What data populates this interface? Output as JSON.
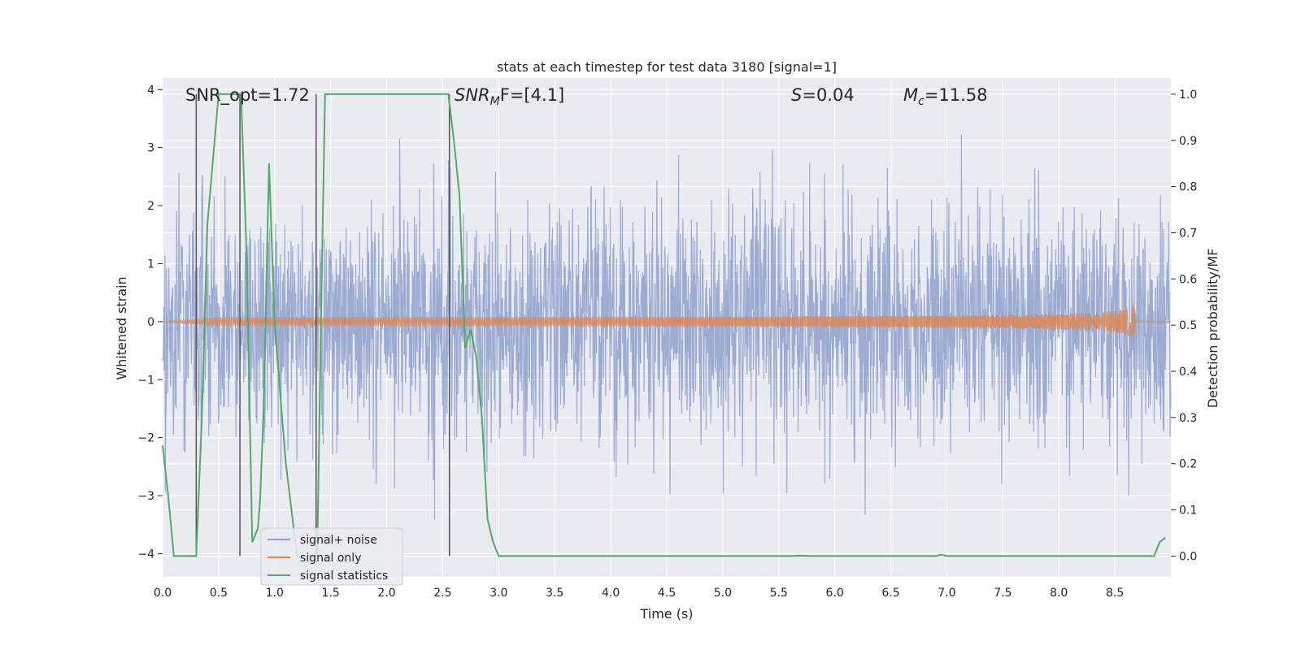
{
  "chart_data": {
    "type": "line",
    "title": "stats at each timestep for test data 3180 [signal=1]",
    "xlabel": "Time (s)",
    "ylabel": "Whitened strain",
    "ylabel_right": "Detection probability/MF",
    "xlim": [
      0,
      9.0
    ],
    "ylim": [
      -4.4,
      4.2
    ],
    "ylim_right": [
      -0.045,
      1.035
    ],
    "x_ticks": [
      "0.0",
      "0.5",
      "1.0",
      "1.5",
      "2.0",
      "2.5",
      "3.0",
      "3.5",
      "4.0",
      "4.5",
      "5.0",
      "5.5",
      "6.0",
      "6.5",
      "7.0",
      "7.5",
      "8.0",
      "8.5"
    ],
    "x_tick_values": [
      0,
      0.5,
      1,
      1.5,
      2,
      2.5,
      3,
      3.5,
      4,
      4.5,
      5,
      5.5,
      6,
      6.5,
      7,
      7.5,
      8,
      8.5
    ],
    "y_ticks": [
      "4",
      "3",
      "2",
      "1",
      "0",
      "−1",
      "−2",
      "−3",
      "−4"
    ],
    "y_tick_values": [
      4,
      3,
      2,
      1,
      0,
      -1,
      -2,
      -3,
      -4
    ],
    "y_ticks_right": [
      "1.0",
      "0.9",
      "0.8",
      "0.7",
      "0.6",
      "0.5",
      "0.4",
      "0.3",
      "0.2",
      "0.1",
      "0.0"
    ],
    "y_tick_values_right": [
      1.0,
      0.9,
      0.8,
      0.7,
      0.6,
      0.5,
      0.4,
      0.3,
      0.2,
      0.1,
      0.0
    ],
    "grid": true,
    "legend_position": "lower-left",
    "annotations": [
      {
        "id": "snr-opt",
        "text": "SNR_opt=1.72"
      },
      {
        "id": "snr-mf",
        "prefix": "SNR",
        "sub": "M",
        "suffix": "F=[4.1]"
      },
      {
        "id": "s-stat",
        "prefix": "S",
        "suffix": "=0.04"
      },
      {
        "id": "mc",
        "prefix": "M",
        "sub": "c",
        "suffix": "=11.58"
      }
    ],
    "series": [
      {
        "name": "signal+ noise",
        "color": "#8da0cb",
        "kind": "noise",
        "noise_sigma": 1.0,
        "approx_range": [
          -4.0,
          3.8
        ]
      },
      {
        "name": "signal only",
        "color": "#dd8452",
        "kind": "chirp",
        "peak_time": 8.67,
        "peak_amplitude": 0.33
      },
      {
        "name": "signal statistics",
        "color": "#55a868",
        "axis": "right",
        "x": [
          0.0,
          0.05,
          0.1,
          0.15,
          0.2,
          0.25,
          0.3,
          0.35,
          0.4,
          0.5,
          0.6,
          0.65,
          0.7,
          0.75,
          0.8,
          0.85,
          0.87,
          0.9,
          0.95,
          1.0,
          1.1,
          1.2,
          1.3,
          1.35,
          1.38,
          1.42,
          1.45,
          1.5,
          2.0,
          2.5,
          2.55,
          2.6,
          2.65,
          2.7,
          2.75,
          2.8,
          2.85,
          2.9,
          2.95,
          3.0,
          3.5,
          4.0,
          4.5,
          5.0,
          5.5,
          5.6,
          5.7,
          5.8,
          6.0,
          6.5,
          6.9,
          6.95,
          7.0,
          7.5,
          8.0,
          8.5,
          8.8,
          8.85,
          8.9,
          8.95
        ],
        "y": [
          0.24,
          0.13,
          0.0,
          0.0,
          0.0,
          0.0,
          0.0,
          0.3,
          0.72,
          1.0,
          1.0,
          1.0,
          1.0,
          0.65,
          0.03,
          0.06,
          0.12,
          0.31,
          0.85,
          0.5,
          0.2,
          0.0,
          0.0,
          0.0,
          0.0,
          0.6,
          1.0,
          1.0,
          1.0,
          1.0,
          1.0,
          0.9,
          0.78,
          0.45,
          0.49,
          0.43,
          0.3,
          0.08,
          0.03,
          0.0,
          0.0,
          0.0,
          0.0,
          0.0,
          0.0,
          0.0,
          0.001,
          0.0,
          0.0,
          0.0,
          0.0,
          0.003,
          0.0,
          0.0,
          0.0,
          0.0,
          0.0,
          0.0,
          0.03,
          0.04
        ]
      }
    ],
    "vlines_x": [
      0.3,
      0.69,
      1.37,
      2.56
    ]
  }
}
